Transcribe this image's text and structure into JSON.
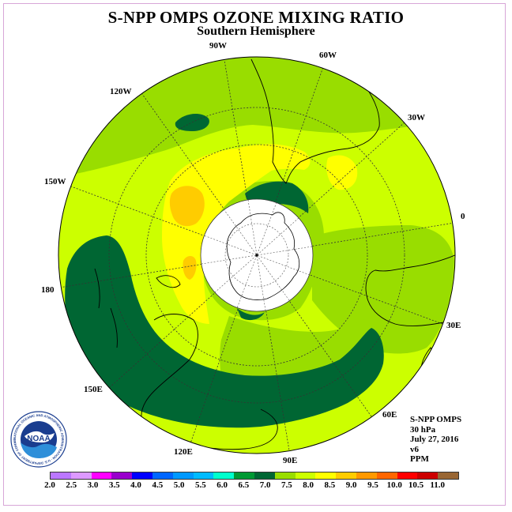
{
  "header": {
    "title": "S-NPP OMPS OZONE MIXING RATIO",
    "subtitle": "Southern Hemisphere"
  },
  "map": {
    "projection": "south-polar-stereographic",
    "longitude_labels": [
      "90W",
      "60W",
      "30W",
      "0",
      "30E",
      "60E",
      "90E",
      "120E",
      "150E",
      "180",
      "150W",
      "120W"
    ],
    "polar_night_mask_color": "#ffffff",
    "field_colors": {
      "6.5-7.0": "#006633",
      "7.0-7.5": "#009900",
      "7.5-8.0": "#99dd00",
      "8.0-8.5": "#ccff00",
      "8.5-9.0": "#ffff00",
      "9.0-9.5": "#ffcc00"
    }
  },
  "info": {
    "instrument": "S-NPP OMPS",
    "level": "30 hPa",
    "date": "July 27, 2016",
    "version": "v6",
    "units": "PPM"
  },
  "colorbar": {
    "tick_labels": [
      "2.0",
      "2.5",
      "3.0",
      "3.5",
      "4.0",
      "4.5",
      "5.0",
      "5.5",
      "6.0",
      "6.5",
      "7.0",
      "7.5",
      "8.0",
      "8.5",
      "9.0",
      "9.5",
      "10.0",
      "10.5",
      "11.0"
    ],
    "colors": [
      "#bb77ff",
      "#dd99ff",
      "#ff00ff",
      "#9900cc",
      "#0000ff",
      "#0066ff",
      "#0099ff",
      "#00bbff",
      "#00ffcc",
      "#009933",
      "#006633",
      "#99dd00",
      "#ccff00",
      "#ffff00",
      "#ffcc00",
      "#ff9900",
      "#ff6600",
      "#ff0000",
      "#cc0000",
      "#996633"
    ]
  },
  "logo": {
    "text": "NOAA",
    "ring_text": "NATIONAL OCEANIC AND ATMOSPHERIC ADMINISTRATION · U.S. DEPARTMENT OF COMMERCE"
  }
}
